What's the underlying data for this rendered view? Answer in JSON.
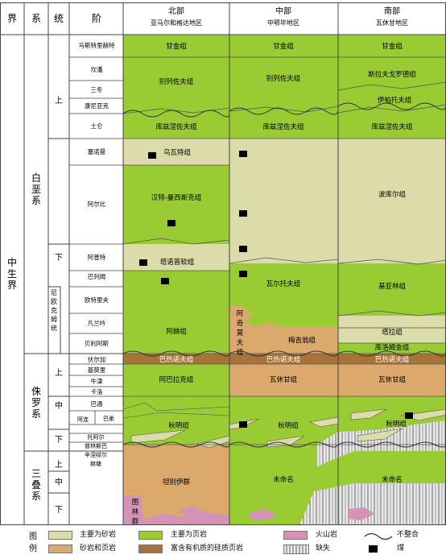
{
  "headers": {
    "jie": "界",
    "xi": "系",
    "tong": "统",
    "jie_stage": "阶",
    "north": "北部",
    "north_sub": "亚马尔和格达地区",
    "middle": "中部",
    "middle_sub": "中鄂毕地区",
    "south": "南部",
    "south_sub": "瓦休甘地区"
  },
  "eras": {
    "mesozoic": "中生界"
  },
  "systems": {
    "cretaceous": "白垩系",
    "jurassic": "侏罗系",
    "triassic": "三叠系"
  },
  "series": {
    "k_upper": "上",
    "k_lower": "下",
    "neocomian": "尼欧克姆统",
    "j_upper": "上",
    "j_middle": "中",
    "j_lower": "下",
    "t_upper": "上",
    "t_middle": "中",
    "t_lower": "下"
  },
  "stages": [
    "马斯特里赫特",
    "坎潘",
    "三冬",
    "康尼亚克",
    "土仑",
    "塞诺曼",
    "阿尔比",
    "阿普特",
    "巴列姆",
    "欧特里夫",
    "凡兰吟",
    "贝利阿斯",
    "伏尔加",
    "基莫里",
    "牛津",
    "卡洛",
    "巴通",
    "巴柔",
    "阿连",
    "托阿尔",
    "普林斯巴",
    "辛涅缪尔",
    "赫塘"
  ],
  "formations": {
    "n_ganjin": "甘金组",
    "m_ganjin": "甘金组",
    "s_ganjin": "甘金组",
    "n_bieliezuofu": "别列佐夫组",
    "m_bieliezuofu": "别列佐夫组",
    "s_silafu": "斯拉夫戈罗德组",
    "s_yipatuo": "伊帕托夫组",
    "n_kuzuo": "库兹涅佐夫组",
    "m_kuzuo": "库兹涅佐夫组",
    "s_kuzuo": "库兹涅佐夫组",
    "n_wuwate": "乌瓦特组",
    "n_hante": "汉特-曼西斯克组",
    "s_bokuer": "波库尔组",
    "n_tanuo": "塔诺普软组",
    "m_waertuo": "瓦尔托夫组",
    "s_jiyalin": "基亚林组",
    "m_aqisaifu": "阿奇莫夫组",
    "n_ajie": "阿赫组",
    "m_meiji": "梅吉翁组",
    "s_taer": "塔拉组",
    "s_kuluo": "库洛姆金组",
    "n_bazhen": "巴热诺夫组",
    "m_bazhen": "巴热诺夫组",
    "s_bazhen": "巴热诺夫组",
    "n_abala": "阿巴拉克组",
    "m_waxiu": "瓦休甘组",
    "s_waxiu": "瓦休甘组",
    "n_qiuming": "秋明组",
    "m_qiuming": "秋明组",
    "s_qiuming": "秋明组",
    "n_tuobie": "坦别伊群",
    "n_tulin": "图林群",
    "m_unnamed": "未命名",
    "s_unnamed": "未命名"
  },
  "legend": {
    "title": "图例",
    "sandstone": "主要为砂岩",
    "shale": "主要为页岩",
    "volcanic": "火山岩",
    "unconformity": "不整合",
    "sand_shale": "砂岩和页岩",
    "organic": "富含有机质的硅质页岩",
    "hiatus": "缺失",
    "coal": "煤"
  },
  "colors": {
    "shale": "#99cc33",
    "sandstone": "#dcdcab",
    "sand_shale": "#dba96b",
    "organic": "#a8733b",
    "volcanic": "#d493b4",
    "hiatus": "#e9e9e9",
    "coal": "#000000"
  }
}
